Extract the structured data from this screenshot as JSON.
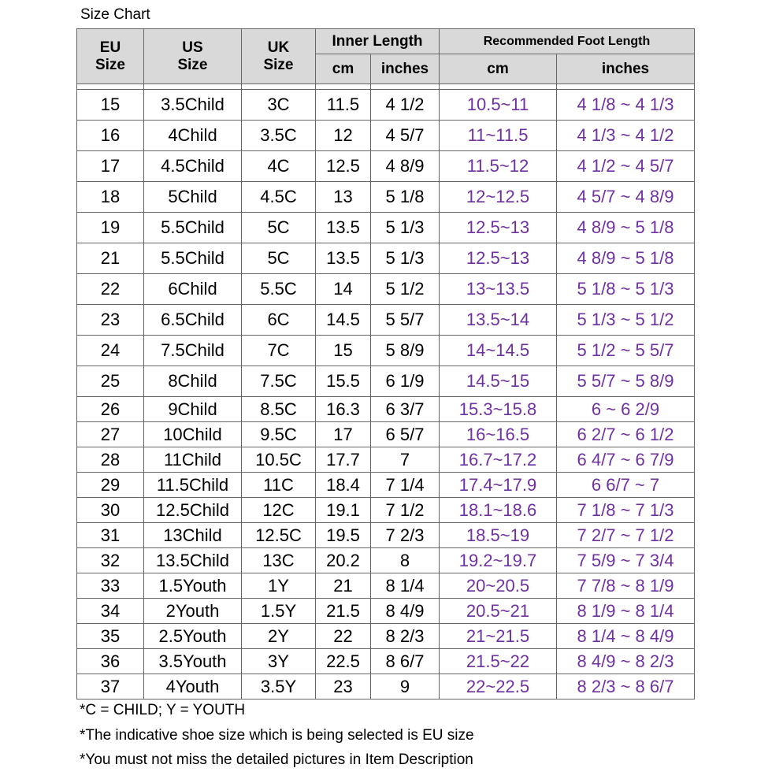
{
  "title": "Size Chart",
  "headers": {
    "eu": [
      "EU",
      "Size"
    ],
    "us": [
      "US",
      "Size"
    ],
    "uk": [
      "UK",
      "Size"
    ],
    "inner_length": "Inner Length",
    "recommended": "Recommended Foot Length",
    "cm": "cm",
    "inches": "inches"
  },
  "rows": [
    [
      "15",
      "3.5Child",
      "3C",
      "11.5",
      "4 1/2",
      "10.5~11",
      "4 1/8 ~ 4 1/3"
    ],
    [
      "16",
      "4Child",
      "3.5C",
      "12",
      "4 5/7",
      "11~11.5",
      "4 1/3 ~ 4 1/2"
    ],
    [
      "17",
      "4.5Child",
      "4C",
      "12.5",
      "4 8/9",
      "11.5~12",
      "4 1/2 ~ 4 5/7"
    ],
    [
      "18",
      "5Child",
      "4.5C",
      "13",
      "5 1/8",
      "12~12.5",
      "4 5/7 ~ 4 8/9"
    ],
    [
      "19",
      "5.5Child",
      "5C",
      "13.5",
      "5 1/3",
      "12.5~13",
      "4 8/9 ~ 5 1/8"
    ],
    [
      "21",
      "5.5Child",
      "5C",
      "13.5",
      "5 1/3",
      "12.5~13",
      "4 8/9 ~ 5 1/8"
    ],
    [
      "22",
      "6Child",
      "5.5C",
      "14",
      "5 1/2",
      "13~13.5",
      "5 1/8 ~ 5 1/3"
    ],
    [
      "23",
      "6.5Child",
      "6C",
      "14.5",
      "5 5/7",
      "13.5~14",
      "5 1/3 ~ 5 1/2"
    ],
    [
      "24",
      "7.5Child",
      "7C",
      "15",
      "5 8/9",
      "14~14.5",
      "5 1/2 ~ 5 5/7"
    ],
    [
      "25",
      "8Child",
      "7.5C",
      "15.5",
      "6 1/9",
      "14.5~15",
      "5 5/7 ~ 5 8/9"
    ],
    [
      "26",
      "9Child",
      "8.5C",
      "16.3",
      "6 3/7",
      "15.3~15.8",
      "6 ~ 6 2/9"
    ],
    [
      "27",
      "10Child",
      "9.5C",
      "17",
      "6 5/7",
      "16~16.5",
      "6 2/7 ~ 6 1/2"
    ],
    [
      "28",
      "11Child",
      "10.5C",
      "17.7",
      "7",
      "16.7~17.2",
      "6 4/7 ~ 6 7/9"
    ],
    [
      "29",
      "11.5Child",
      "11C",
      "18.4",
      "7 1/4",
      "17.4~17.9",
      "6 6/7 ~ 7"
    ],
    [
      "30",
      "12.5Child",
      "12C",
      "19.1",
      "7 1/2",
      "18.1~18.6",
      "7 1/8 ~ 7 1/3"
    ],
    [
      "31",
      "13Child",
      "12.5C",
      "19.5",
      "7 2/3",
      "18.5~19",
      "7 2/7 ~ 7 1/2"
    ],
    [
      "32",
      "13.5Child",
      "13C",
      "20.2",
      "8",
      "19.2~19.7",
      "7 5/9 ~ 7 3/4"
    ],
    [
      "33",
      "1.5Youth",
      "1Y",
      "21",
      "8 1/4",
      "20~20.5",
      "7 7/8 ~ 8 1/9"
    ],
    [
      "34",
      "2Youth",
      "1.5Y",
      "21.5",
      "8 4/9",
      "20.5~21",
      "8 1/9 ~ 8 1/4"
    ],
    [
      "35",
      "2.5Youth",
      "2Y",
      "22",
      "8 2/3",
      "21~21.5",
      "8 1/4 ~ 8 4/9"
    ],
    [
      "36",
      "3.5Youth",
      "3Y",
      "22.5",
      "8 6/7",
      "21.5~22",
      "8 4/9 ~ 8 2/3"
    ],
    [
      "37",
      "4Youth",
      "3.5Y",
      "23",
      "9",
      "22~22.5",
      "8 2/3 ~ 8 6/7"
    ]
  ],
  "notes": [
    "*C = CHILD; Y = YOUTH",
    "*The indicative shoe size which is being selected is EU size",
    "*You must not miss the detailed pictures in Item Description"
  ],
  "colors": {
    "header_bg": "#d9d9d9",
    "recommended_text": "#7030a0",
    "border": "#666666"
  }
}
